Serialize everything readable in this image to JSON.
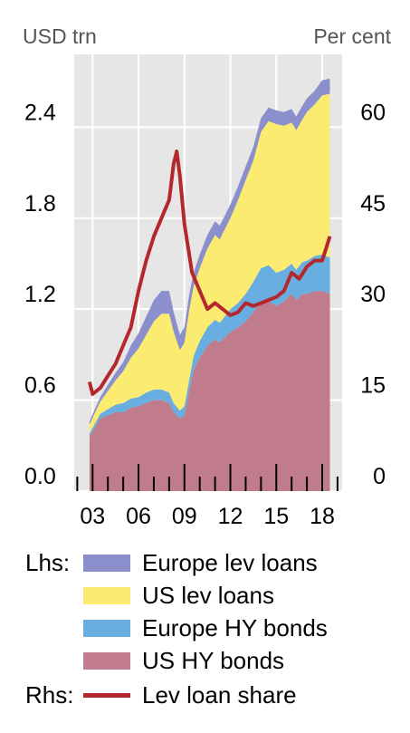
{
  "chart_data": {
    "type": "area",
    "left_axis_unit": "USD trn",
    "right_axis_unit": "Per cent",
    "x_tick_labels": [
      "03",
      "06",
      "09",
      "12",
      "15",
      "18"
    ],
    "x_tick_years": [
      2003,
      2006,
      2009,
      2012,
      2015,
      2018
    ],
    "xlim": [
      2001.8,
      2019.3
    ],
    "y_left_ticks": [
      "0.0",
      "0.6",
      "1.2",
      "1.8",
      "2.4"
    ],
    "y_left_tick_values": [
      0,
      0.6,
      1.2,
      1.8,
      2.4
    ],
    "y_right_ticks": [
      "0",
      "15",
      "30",
      "45",
      "60"
    ],
    "y_right_tick_values": [
      0,
      15,
      30,
      45,
      60
    ],
    "ylim_left": [
      0,
      2.88
    ],
    "ylim_right": [
      0,
      72
    ],
    "grid": true,
    "stacked": true,
    "x": [
      2002.8,
      2003.5,
      2004,
      2004.5,
      2005,
      2005.5,
      2006,
      2006.5,
      2007,
      2007.5,
      2008,
      2008.3,
      2008.7,
      2009,
      2009.3,
      2009.6,
      2010,
      2010.5,
      2011,
      2011.3,
      2011.7,
      2012,
      2012.5,
      2013,
      2013.5,
      2014,
      2014.5,
      2015,
      2015.5,
      2016,
      2016.3,
      2016.7,
      2017,
      2017.5,
      2018,
      2018.5
    ],
    "series": [
      {
        "name": "US HY bonds",
        "axis": "left",
        "color": "#c07b8c",
        "values": [
          0.36,
          0.48,
          0.5,
          0.52,
          0.52,
          0.55,
          0.56,
          0.58,
          0.6,
          0.6,
          0.58,
          0.52,
          0.48,
          0.5,
          0.66,
          0.8,
          0.88,
          0.96,
          1.0,
          0.98,
          1.02,
          1.05,
          1.08,
          1.12,
          1.18,
          1.25,
          1.25,
          1.22,
          1.25,
          1.3,
          1.26,
          1.3,
          1.3,
          1.32,
          1.32,
          1.3
        ]
      },
      {
        "name": "Europe HY bonds",
        "axis": "left",
        "color": "#69aee0",
        "values": [
          0.02,
          0.03,
          0.04,
          0.05,
          0.06,
          0.06,
          0.06,
          0.07,
          0.07,
          0.07,
          0.07,
          0.06,
          0.05,
          0.06,
          0.07,
          0.09,
          0.11,
          0.12,
          0.13,
          0.13,
          0.14,
          0.15,
          0.16,
          0.18,
          0.2,
          0.22,
          0.24,
          0.22,
          0.21,
          0.2,
          0.2,
          0.21,
          0.22,
          0.23,
          0.24,
          0.24
        ]
      },
      {
        "name": "US lev loans",
        "axis": "left",
        "color": "#fceb71",
        "values": [
          0.06,
          0.08,
          0.12,
          0.16,
          0.21,
          0.27,
          0.32,
          0.38,
          0.45,
          0.5,
          0.52,
          0.47,
          0.4,
          0.42,
          0.46,
          0.46,
          0.48,
          0.52,
          0.56,
          0.55,
          0.58,
          0.6,
          0.68,
          0.75,
          0.8,
          0.9,
          0.95,
          0.98,
          0.95,
          0.93,
          0.92,
          0.94,
          0.98,
          1.0,
          1.05,
          1.08
        ]
      },
      {
        "name": "Europe lev loans",
        "axis": "left",
        "color": "#8b8fcc",
        "values": [
          0.02,
          0.03,
          0.04,
          0.05,
          0.06,
          0.08,
          0.1,
          0.12,
          0.14,
          0.15,
          0.15,
          0.13,
          0.1,
          0.1,
          0.1,
          0.09,
          0.09,
          0.09,
          0.09,
          0.09,
          0.09,
          0.09,
          0.09,
          0.09,
          0.09,
          0.09,
          0.09,
          0.09,
          0.09,
          0.09,
          0.09,
          0.09,
          0.09,
          0.09,
          0.1,
          0.1
        ]
      },
      {
        "name": "Lev loan share",
        "axis": "right",
        "type": "line",
        "color": "#b4282d",
        "x": [
          2002.8,
          2003,
          2003.5,
          2004,
          2004.5,
          2005,
          2005.5,
          2006,
          2006.5,
          2007,
          2007.5,
          2008,
          2008.3,
          2008.5,
          2008.7,
          2009,
          2009.5,
          2010,
          2010.5,
          2011,
          2011.5,
          2012,
          2012.5,
          2013,
          2013.5,
          2014,
          2014.5,
          2015,
          2015.5,
          2016,
          2016.5,
          2017,
          2017.5,
          2018,
          2018.5
        ],
        "values": [
          18,
          16,
          17,
          19,
          21,
          24,
          27,
          33,
          38,
          42,
          45,
          48,
          54,
          56,
          52,
          44,
          36,
          33,
          30,
          31,
          30,
          29,
          29.5,
          31,
          30.5,
          31,
          31.5,
          32,
          33,
          36,
          35,
          37,
          38,
          38,
          42
        ]
      }
    ]
  },
  "legend": {
    "lhs_prefix": "Lhs:",
    "rhs_prefix": "Rhs:",
    "items": [
      {
        "label": "Europe lev loans",
        "color": "#8b8fcc",
        "kind": "area"
      },
      {
        "label": "US lev loans",
        "color": "#fceb71",
        "kind": "area"
      },
      {
        "label": "Europe HY bonds",
        "color": "#69aee0",
        "kind": "area"
      },
      {
        "label": "US HY bonds",
        "color": "#c07b8c",
        "kind": "area"
      },
      {
        "label": "Lev loan share",
        "color": "#b4282d",
        "kind": "line"
      }
    ]
  },
  "plot_background": "#e6e6e6"
}
